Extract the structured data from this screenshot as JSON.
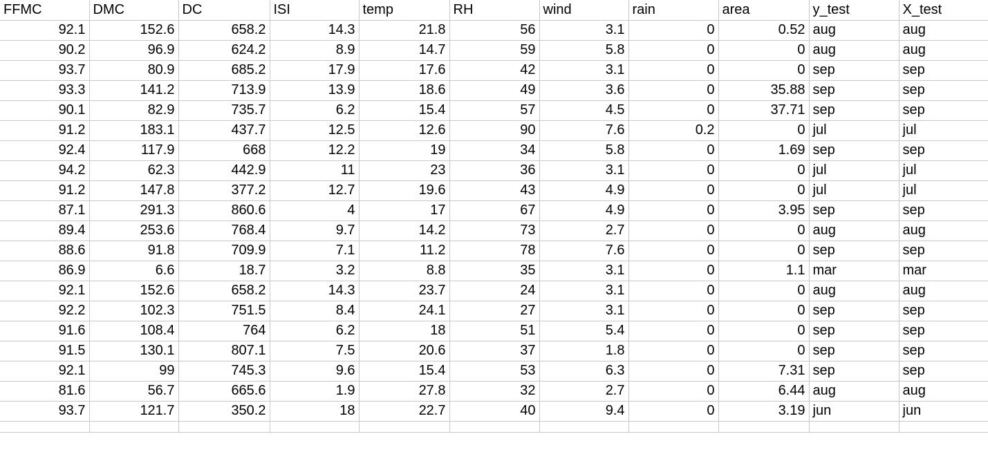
{
  "sheet": {
    "columns": [
      "FFMC",
      "DMC",
      "DC",
      "ISI",
      "temp",
      "RH",
      "wind",
      "rain",
      "area",
      "y_test",
      "X_test"
    ],
    "column_align": [
      "num",
      "num",
      "num",
      "num",
      "num",
      "num",
      "num",
      "num",
      "num",
      "txt",
      "txt"
    ],
    "rows": [
      [
        "92.1",
        "152.6",
        "658.2",
        "14.3",
        "21.8",
        "56",
        "3.1",
        "0",
        "0.52",
        "aug",
        "aug"
      ],
      [
        "90.2",
        "96.9",
        "624.2",
        "8.9",
        "14.7",
        "59",
        "5.8",
        "0",
        "0",
        "aug",
        "aug"
      ],
      [
        "93.7",
        "80.9",
        "685.2",
        "17.9",
        "17.6",
        "42",
        "3.1",
        "0",
        "0",
        "sep",
        "sep"
      ],
      [
        "93.3",
        "141.2",
        "713.9",
        "13.9",
        "18.6",
        "49",
        "3.6",
        "0",
        "35.88",
        "sep",
        "sep"
      ],
      [
        "90.1",
        "82.9",
        "735.7",
        "6.2",
        "15.4",
        "57",
        "4.5",
        "0",
        "37.71",
        "sep",
        "sep"
      ],
      [
        "91.2",
        "183.1",
        "437.7",
        "12.5",
        "12.6",
        "90",
        "7.6",
        "0.2",
        "0",
        "jul",
        "jul"
      ],
      [
        "92.4",
        "117.9",
        "668",
        "12.2",
        "19",
        "34",
        "5.8",
        "0",
        "1.69",
        "sep",
        "sep"
      ],
      [
        "94.2",
        "62.3",
        "442.9",
        "11",
        "23",
        "36",
        "3.1",
        "0",
        "0",
        "jul",
        "jul"
      ],
      [
        "91.2",
        "147.8",
        "377.2",
        "12.7",
        "19.6",
        "43",
        "4.9",
        "0",
        "0",
        "jul",
        "jul"
      ],
      [
        "87.1",
        "291.3",
        "860.6",
        "4",
        "17",
        "67",
        "4.9",
        "0",
        "3.95",
        "sep",
        "sep"
      ],
      [
        "89.4",
        "253.6",
        "768.4",
        "9.7",
        "14.2",
        "73",
        "2.7",
        "0",
        "0",
        "aug",
        "aug"
      ],
      [
        "88.6",
        "91.8",
        "709.9",
        "7.1",
        "11.2",
        "78",
        "7.6",
        "0",
        "0",
        "sep",
        "sep"
      ],
      [
        "86.9",
        "6.6",
        "18.7",
        "3.2",
        "8.8",
        "35",
        "3.1",
        "0",
        "1.1",
        "mar",
        "mar"
      ],
      [
        "92.1",
        "152.6",
        "658.2",
        "14.3",
        "23.7",
        "24",
        "3.1",
        "0",
        "0",
        "aug",
        "aug"
      ],
      [
        "92.2",
        "102.3",
        "751.5",
        "8.4",
        "24.1",
        "27",
        "3.1",
        "0",
        "0",
        "sep",
        "sep"
      ],
      [
        "91.6",
        "108.4",
        "764",
        "6.2",
        "18",
        "51",
        "5.4",
        "0",
        "0",
        "sep",
        "sep"
      ],
      [
        "91.5",
        "130.1",
        "807.1",
        "7.5",
        "20.6",
        "37",
        "1.8",
        "0",
        "0",
        "sep",
        "sep"
      ],
      [
        "92.1",
        "99",
        "745.3",
        "9.6",
        "15.4",
        "53",
        "6.3",
        "0",
        "7.31",
        "sep",
        "sep"
      ],
      [
        "81.6",
        "56.7",
        "665.6",
        "1.9",
        "27.8",
        "32",
        "2.7",
        "0",
        "6.44",
        "aug",
        "aug"
      ],
      [
        "93.7",
        "121.7",
        "350.2",
        "18",
        "22.7",
        "40",
        "9.4",
        "0",
        "3.19",
        "jun",
        "jun"
      ]
    ]
  }
}
